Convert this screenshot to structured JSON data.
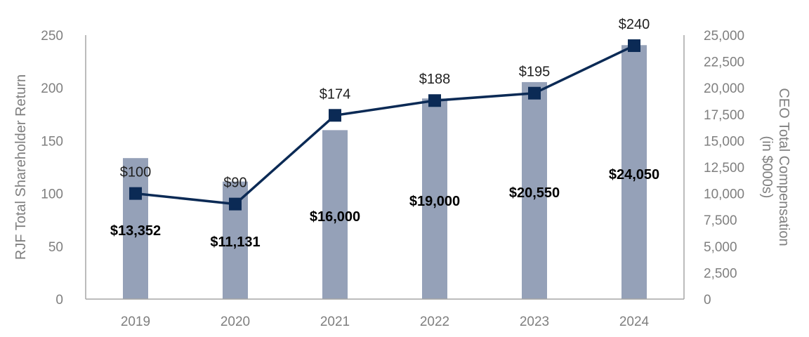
{
  "chart_data": {
    "type": "bar+line",
    "categories": [
      "2019",
      "2020",
      "2021",
      "2022",
      "2023",
      "2024"
    ],
    "series": [
      {
        "name": "CEO Total Compensation (in $000s)",
        "type": "bar",
        "axis": "right",
        "values": [
          13352,
          11131,
          16000,
          19000,
          20550,
          24050
        ],
        "labels": [
          "$13,352",
          "$11,131",
          "$16,000",
          "$19,000",
          "$20,550",
          "$24,050"
        ],
        "color": "#95a1b8"
      },
      {
        "name": "RJF Total Shareholder Return",
        "type": "line",
        "axis": "left",
        "values": [
          100,
          90,
          174,
          188,
          195,
          240
        ],
        "labels": [
          "$100",
          "$90",
          "$174",
          "$188",
          "$195",
          "$240"
        ],
        "color": "#0b2a55"
      }
    ],
    "left_axis": {
      "title": "RJF Total Shareholder Return",
      "range": [
        0,
        250
      ],
      "ticks": [
        0,
        50,
        100,
        150,
        200,
        250
      ],
      "tick_labels": [
        "0",
        "50",
        "100",
        "150",
        "200",
        "250"
      ]
    },
    "right_axis": {
      "title_line1": "CEO Total Compensation",
      "title_line2": "(in $000s)",
      "range": [
        0,
        25000
      ],
      "ticks": [
        0,
        2500,
        5000,
        7500,
        10000,
        12500,
        15000,
        17500,
        20000,
        22500,
        25000
      ],
      "tick_labels": [
        "0",
        "2,500",
        "5,000",
        "7,500",
        "10,000",
        "12,500",
        "15,000",
        "17,500",
        "20,000",
        "22,500",
        "25,000"
      ]
    },
    "grid": false
  }
}
